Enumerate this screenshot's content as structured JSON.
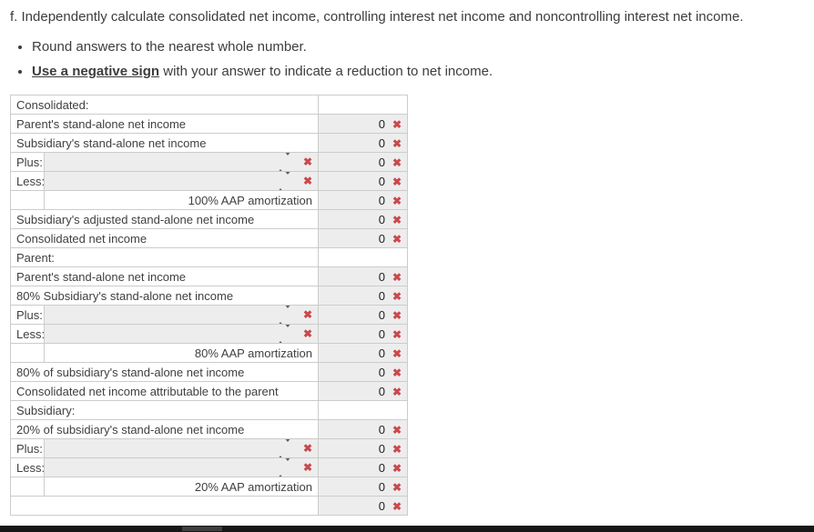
{
  "page": {
    "heading": "f. Independently calculate consolidated net income, controlling interest net income and noncontrolling interest net income.",
    "bullets": {
      "first": "Round answers to the nearest whole number.",
      "second_em": "Use a negative sign",
      "second_rest": " with your answer to indicate a reduction to net income."
    }
  },
  "icons": {
    "wrong": "✖",
    "select_sort": "sort-arrows"
  },
  "colors": {
    "wrong_red": "#c9494c",
    "cell_bg": "#ededed",
    "grid_line": "#cccccc",
    "dark_line": "#000000",
    "text": "#3f3f3f",
    "bottom_bar": "#171717"
  },
  "table": {
    "rows": [
      {
        "kind": "section",
        "label": "Consolidated:",
        "answer": "",
        "border": ""
      },
      {
        "kind": "full",
        "label": "Parent's stand-alone net income",
        "answer": "0",
        "border": "dark"
      },
      {
        "kind": "full",
        "label": "Subsidiary's stand-alone net income",
        "answer": "0",
        "border": ""
      },
      {
        "kind": "select",
        "label": "Plus:",
        "answer": "0",
        "border": ""
      },
      {
        "kind": "select",
        "label": "Less:",
        "answer": "0",
        "border": ""
      },
      {
        "kind": "indent",
        "label": "100% AAP amortization",
        "answer": "0",
        "border": "dark"
      },
      {
        "kind": "full",
        "label": "Subsidiary's adjusted stand-alone net income",
        "answer": "0",
        "border": "dark"
      },
      {
        "kind": "full",
        "label": "Consolidated net income",
        "answer": "0",
        "border": "double"
      },
      {
        "kind": "section",
        "label": "Parent:",
        "answer": "",
        "border": ""
      },
      {
        "kind": "full",
        "label": "Parent's stand-alone net income",
        "answer": "0",
        "border": "dark"
      },
      {
        "kind": "full",
        "label": "80% Subsidiary's stand-alone net income",
        "answer": "0",
        "border": ""
      },
      {
        "kind": "select",
        "label": "Plus:",
        "answer": "0",
        "border": ""
      },
      {
        "kind": "select",
        "label": "Less:",
        "answer": "0",
        "border": ""
      },
      {
        "kind": "indent",
        "label": "80% AAP amortization",
        "answer": "0",
        "border": "dark"
      },
      {
        "kind": "full",
        "label": "80% of subsidiary's stand-alone net income",
        "answer": "0",
        "border": "dark"
      },
      {
        "kind": "full",
        "label": "Consolidated net income attributable to the parent",
        "answer": "0",
        "border": "double"
      },
      {
        "kind": "section",
        "label": "Subsidiary:",
        "answer": "",
        "border": ""
      },
      {
        "kind": "full",
        "label": "20% of subsidiary's stand-alone net income",
        "answer": "0",
        "border": ""
      },
      {
        "kind": "select",
        "label": "Plus:",
        "answer": "0",
        "border": ""
      },
      {
        "kind": "select",
        "label": "Less:",
        "answer": "0",
        "border": ""
      },
      {
        "kind": "indent",
        "label": "20% AAP amortization",
        "answer": "0",
        "border": "dark"
      },
      {
        "kind": "blank",
        "label": "",
        "answer": "0",
        "border": ""
      }
    ]
  }
}
